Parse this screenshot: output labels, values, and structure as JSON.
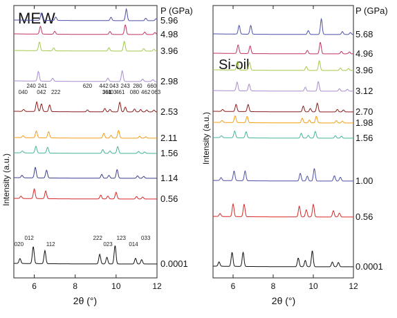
{
  "chart_data": [
    {
      "type": "line",
      "title": "MEW",
      "pressure_header": "P (GPa)",
      "xlabel": "2θ (°)",
      "ylabel": "Intensity (a.u.)",
      "xlim": [
        5,
        12
      ],
      "x_ticks": [
        "6",
        "8",
        "10",
        "12"
      ],
      "grid": false,
      "series": [
        {
          "name": "0.0001",
          "color": "#111111",
          "peaks": [
            [
              5.3,
              1.0
            ],
            [
              5.95,
              3.5
            ],
            [
              6.52,
              2.7
            ],
            [
              9.2,
              2.0
            ],
            [
              9.55,
              1.4
            ],
            [
              9.95,
              3.8
            ],
            [
              10.95,
              1.2
            ],
            [
              11.25,
              0.9
            ]
          ]
        },
        {
          "name": "0.56",
          "color": "#d62728",
          "peaks": [
            [
              5.35,
              0.5
            ],
            [
              6.0,
              2.0
            ],
            [
              6.56,
              1.6
            ],
            [
              9.25,
              0.8
            ],
            [
              9.6,
              0.6
            ],
            [
              10.0,
              1.4
            ],
            [
              11.0,
              0.5
            ],
            [
              11.3,
              0.4
            ]
          ]
        },
        {
          "name": "1.14",
          "color": "#3d3d8f",
          "peaks": [
            [
              5.4,
              0.5
            ],
            [
              6.05,
              2.2
            ],
            [
              6.6,
              1.6
            ],
            [
              9.3,
              0.8
            ],
            [
              9.65,
              0.6
            ],
            [
              10.05,
              1.8
            ],
            [
              11.05,
              0.5
            ],
            [
              11.35,
              0.4
            ]
          ]
        },
        {
          "name": "1.56",
          "color": "#44b399",
          "peaks": [
            [
              5.42,
              0.4
            ],
            [
              6.08,
              1.4
            ],
            [
              6.65,
              1.2
            ],
            [
              9.35,
              0.8
            ],
            [
              9.7,
              0.5
            ],
            [
              10.08,
              1.4
            ],
            [
              11.1,
              0.4
            ],
            [
              11.4,
              0.3
            ]
          ]
        },
        {
          "name": "2.11",
          "color": "#f39c12",
          "peaks": [
            [
              5.45,
              0.4
            ],
            [
              6.1,
              1.4
            ],
            [
              6.7,
              1.3
            ],
            [
              9.4,
              1.0
            ],
            [
              9.75,
              0.6
            ],
            [
              10.12,
              1.6
            ],
            [
              11.15,
              0.4
            ],
            [
              11.45,
              0.3
            ]
          ]
        },
        {
          "name": "2.53",
          "color": "#8b1a1a",
          "peaks": [
            [
              5.48,
              0.4
            ],
            [
              6.12,
              2.0
            ],
            [
              6.35,
              1.6
            ],
            [
              6.75,
              1.4
            ],
            [
              8.6,
              0.4
            ],
            [
              9.45,
              0.7
            ],
            [
              9.7,
              0.5
            ],
            [
              10.18,
              2.0
            ],
            [
              10.45,
              1.0
            ],
            [
              10.9,
              0.6
            ],
            [
              11.2,
              0.5
            ],
            [
              11.5,
              0.4
            ],
            [
              11.85,
              0.4
            ]
          ]
        },
        {
          "name": "2.98",
          "color": "#a98bd0",
          "peaks": [
            [
              6.2,
              2.0
            ],
            [
              6.9,
              0.6
            ],
            [
              9.6,
              0.7
            ],
            [
              10.3,
              2.2
            ],
            [
              11.3,
              0.5
            ],
            [
              11.8,
              0.4
            ]
          ]
        },
        {
          "name": "3.96",
          "color": "#a3c94a",
          "peaks": [
            [
              6.25,
              1.8
            ],
            [
              6.95,
              0.6
            ],
            [
              9.65,
              0.7
            ],
            [
              10.4,
              2.0
            ],
            [
              11.35,
              0.5
            ],
            [
              11.85,
              0.4
            ]
          ]
        },
        {
          "name": "4.98",
          "color": "#c0335c",
          "peaks": [
            [
              6.3,
              1.6
            ],
            [
              7.0,
              0.6
            ],
            [
              9.7,
              0.6
            ],
            [
              10.45,
              2.0
            ],
            [
              11.4,
              0.5
            ],
            [
              11.9,
              0.4
            ]
          ]
        },
        {
          "name": "5.96",
          "color": "#4b4fa6",
          "peaks": [
            [
              6.35,
              1.5
            ],
            [
              7.05,
              0.7
            ],
            [
              9.75,
              0.7
            ],
            [
              10.5,
              2.4
            ],
            [
              11.45,
              0.5
            ],
            [
              11.95,
              0.4
            ]
          ]
        }
      ],
      "annotations": [
        {
          "text": "020",
          "x": 5.25,
          "series": "0.0001"
        },
        {
          "text": "012",
          "x": 5.75,
          "series": "0.0001"
        },
        {
          "text": "112",
          "x": 6.8,
          "series": "0.0001"
        },
        {
          "text": "222",
          "x": 9.1,
          "series": "0.0001"
        },
        {
          "text": "023",
          "x": 9.6,
          "series": "0.0001"
        },
        {
          "text": "123",
          "x": 10.25,
          "series": "0.0001"
        },
        {
          "text": "014",
          "x": 10.85,
          "series": "0.0001"
        },
        {
          "text": "033",
          "x": 11.45,
          "series": "0.0001"
        },
        {
          "text": "040",
          "x": 5.45,
          "series": "2.53"
        },
        {
          "text": "240",
          "x": 5.85,
          "series": "2.53"
        },
        {
          "text": "042",
          "x": 6.35,
          "series": "2.53"
        },
        {
          "text": "241",
          "x": 6.4,
          "series": "2.53"
        },
        {
          "text": "222",
          "x": 7.05,
          "series": "2.53"
        },
        {
          "text": "620",
          "x": 8.6,
          "series": "2.53"
        },
        {
          "text": "361",
          "x": 9.55,
          "series": "2.53"
        },
        {
          "text": "442",
          "x": 9.4,
          "series": "2.53"
        },
        {
          "text": "403",
          "x": 9.8,
          "series": "2.53"
        },
        {
          "text": "043",
          "x": 9.9,
          "series": "2.53"
        },
        {
          "text": "461",
          "x": 10.2,
          "series": "2.53"
        },
        {
          "text": "243",
          "x": 10.45,
          "series": "2.53"
        },
        {
          "text": "080",
          "x": 10.9,
          "series": "2.53"
        },
        {
          "text": "280",
          "x": 11.05,
          "series": "2.53"
        },
        {
          "text": "462",
          "x": 11.45,
          "series": "2.53"
        },
        {
          "text": "660",
          "x": 11.75,
          "series": "2.53"
        },
        {
          "text": "063",
          "x": 11.95,
          "series": "2.53"
        }
      ]
    },
    {
      "type": "line",
      "title": "Si-oil",
      "pressure_header": "P (GPa)",
      "xlabel": "2θ (°)",
      "ylabel": "Intensity (a.u.)",
      "xlim": [
        5,
        12
      ],
      "x_ticks": [
        "6",
        "8",
        "10",
        "12"
      ],
      "grid": false,
      "series": [
        {
          "name": "0.0001",
          "color": "#111111",
          "peaks": [
            [
              5.3,
              0.9
            ],
            [
              5.95,
              2.9
            ],
            [
              6.5,
              2.9
            ],
            [
              9.25,
              1.8
            ],
            [
              9.6,
              1.3
            ],
            [
              9.95,
              3.3
            ],
            [
              10.95,
              1.0
            ],
            [
              11.25,
              0.9
            ]
          ]
        },
        {
          "name": "0.56",
          "color": "#d62728",
          "peaks": [
            [
              5.35,
              0.6
            ],
            [
              6.0,
              2.6
            ],
            [
              6.55,
              2.6
            ],
            [
              9.3,
              2.2
            ],
            [
              9.65,
              1.5
            ],
            [
              10.0,
              2.6
            ],
            [
              11.0,
              1.3
            ],
            [
              11.3,
              0.8
            ]
          ]
        },
        {
          "name": "1.00",
          "color": "#4b4fa6",
          "peaks": [
            [
              5.4,
              0.6
            ],
            [
              6.05,
              2.0
            ],
            [
              6.6,
              2.0
            ],
            [
              9.35,
              1.6
            ],
            [
              9.7,
              1.0
            ],
            [
              10.05,
              2.6
            ],
            [
              11.05,
              1.1
            ],
            [
              11.35,
              0.8
            ]
          ]
        },
        {
          "name": "1.56",
          "color": "#44b399",
          "peaks": [
            [
              5.42,
              0.4
            ],
            [
              6.08,
              1.4
            ],
            [
              6.65,
              1.3
            ],
            [
              9.4,
              1.0
            ],
            [
              9.75,
              0.6
            ],
            [
              10.1,
              1.4
            ],
            [
              11.1,
              0.5
            ],
            [
              11.4,
              0.4
            ]
          ]
        },
        {
          "name": "1.98",
          "color": "#f39c12",
          "peaks": [
            [
              5.45,
              0.4
            ],
            [
              6.1,
              1.4
            ],
            [
              6.7,
              1.3
            ],
            [
              9.45,
              1.0
            ],
            [
              9.8,
              0.6
            ],
            [
              10.15,
              1.4
            ],
            [
              11.15,
              0.5
            ],
            [
              11.45,
              0.4
            ]
          ]
        },
        {
          "name": "2.70",
          "color": "#8b1a1a",
          "peaks": [
            [
              5.48,
              0.4
            ],
            [
              6.15,
              1.5
            ],
            [
              6.75,
              1.5
            ],
            [
              9.5,
              1.2
            ],
            [
              9.85,
              0.7
            ],
            [
              10.2,
              1.8
            ],
            [
              11.2,
              0.5
            ],
            [
              11.5,
              0.4
            ]
          ]
        },
        {
          "name": "3.12",
          "color": "#a98bd0",
          "peaks": [
            [
              6.2,
              1.8
            ],
            [
              6.8,
              1.4
            ],
            [
              9.6,
              0.8
            ],
            [
              10.25,
              2.0
            ],
            [
              11.3,
              0.5
            ],
            [
              11.7,
              0.4
            ]
          ]
        },
        {
          "name": "3.96",
          "color": "#a3c94a",
          "peaks": [
            [
              6.22,
              1.8
            ],
            [
              6.82,
              1.6
            ],
            [
              9.65,
              0.8
            ],
            [
              10.3,
              2.0
            ],
            [
              11.35,
              0.5
            ],
            [
              11.75,
              0.4
            ]
          ]
        },
        {
          "name": "4.96",
          "color": "#c0335c",
          "peaks": [
            [
              6.25,
              1.8
            ],
            [
              6.85,
              1.6
            ],
            [
              9.7,
              0.7
            ],
            [
              10.35,
              2.4
            ],
            [
              11.4,
              0.5
            ],
            [
              11.8,
              0.4
            ]
          ]
        },
        {
          "name": "5.68",
          "color": "#4b4fa6",
          "peaks": [
            [
              6.3,
              1.8
            ],
            [
              6.88,
              1.8
            ],
            [
              9.75,
              0.8
            ],
            [
              10.4,
              3.2
            ],
            [
              11.45,
              0.6
            ],
            [
              11.85,
              0.4
            ]
          ]
        }
      ],
      "annotations": []
    }
  ]
}
